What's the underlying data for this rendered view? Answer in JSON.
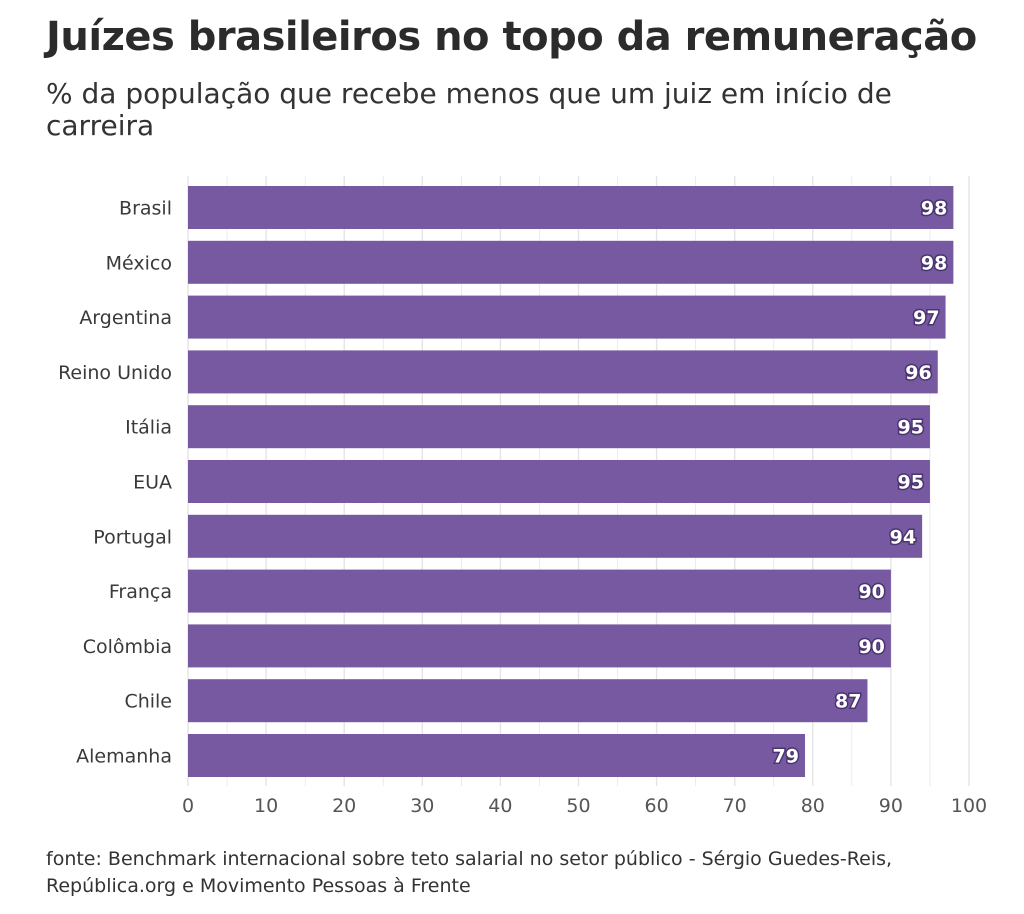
{
  "title": "Juízes brasileiros no topo da remuneração",
  "subtitle": "% da população que recebe menos que um juiz em início de carreira",
  "source": "fonte: Benchmark internacional sobre teto salarial no setor público - Sérgio Guedes-Reis, República.org e Movimento Pessoas à Frente",
  "colors": {
    "bar": "#7659a0",
    "grid": "#e4e4e4",
    "label_outline": "#4a3470"
  },
  "chart_data": {
    "type": "bar",
    "orientation": "horizontal",
    "title": "Juízes brasileiros no topo da remuneração",
    "subtitle": "% da população que recebe menos que um juiz em início de carreira",
    "xlabel": "",
    "ylabel": "",
    "xlim": [
      0,
      100
    ],
    "categories": [
      "Brasil",
      "México",
      "Argentina",
      "Reino Unido",
      "Itália",
      "EUA",
      "Portugal",
      "França",
      "Colômbia",
      "Chile",
      "Alemanha"
    ],
    "values": [
      98,
      98,
      97,
      96,
      95,
      95,
      94,
      90,
      90,
      87,
      79
    ],
    "ticks": [
      0,
      10,
      20,
      30,
      40,
      50,
      60,
      70,
      80,
      90,
      100
    ],
    "grid": true,
    "data_labels": true
  }
}
